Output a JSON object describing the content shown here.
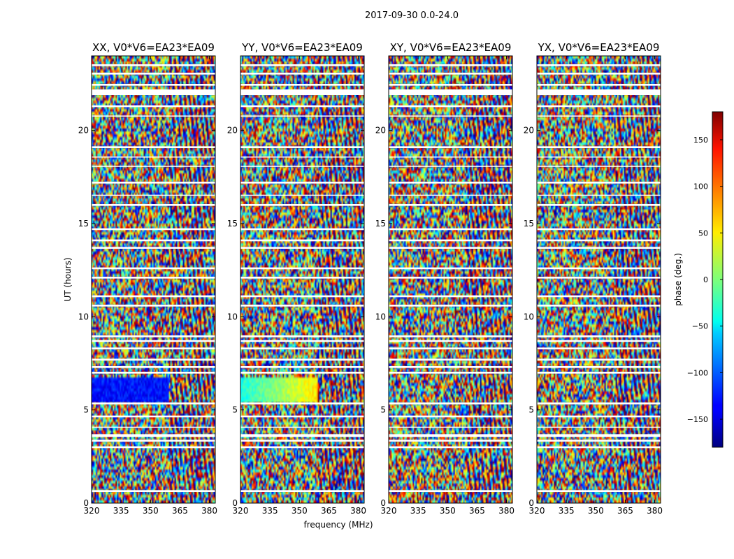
{
  "chart_data": {
    "type": "heatmap",
    "suptitle": "2017-09-30 0.0-24.0",
    "xlabel": "frequency (MHz)",
    "ylabel": "UT (hours)",
    "xlim": [
      320,
      383
    ],
    "ylim": [
      0,
      24
    ],
    "xticks": [
      320,
      335,
      350,
      365,
      380
    ],
    "yticks": [
      0,
      5,
      10,
      15,
      20
    ],
    "panels": [
      {
        "title": "XX, V0*V6=EA23*EA09"
      },
      {
        "title": "YY, V0*V6=EA23*EA09"
      },
      {
        "title": "XY, V0*V6=EA23*EA09"
      },
      {
        "title": "YX, V0*V6=EA23*EA09"
      }
    ],
    "colorbar": {
      "label": "phase (deg.)",
      "range": [
        -180,
        180
      ],
      "ticks": [
        150,
        100,
        50,
        0,
        -50,
        -100,
        -150
      ],
      "tick_labels": [
        "150",
        "100",
        "50",
        "0",
        "−50",
        "−100",
        "−150"
      ],
      "colormap": "jet"
    },
    "blank_time_ranges_hours": [
      [
        0.6,
        0.7
      ],
      [
        2.95,
        3.05
      ],
      [
        3.3,
        3.4
      ],
      [
        3.55,
        3.7
      ],
      [
        4.05,
        4.1
      ],
      [
        4.6,
        4.7
      ],
      [
        5.3,
        5.4
      ],
      [
        6.95,
        7.05
      ],
      [
        7.25,
        7.35
      ],
      [
        7.65,
        7.75
      ],
      [
        8.25,
        8.35
      ],
      [
        8.65,
        8.75
      ],
      [
        8.9,
        9.0
      ],
      [
        10.55,
        10.65
      ],
      [
        11.05,
        11.15
      ],
      [
        12.05,
        12.15
      ],
      [
        12.55,
        12.65
      ],
      [
        13.65,
        13.75
      ],
      [
        14.05,
        14.15
      ],
      [
        14.65,
        14.75
      ],
      [
        15.95,
        16.05
      ],
      [
        16.5,
        16.55
      ],
      [
        17.15,
        17.25
      ],
      [
        18.05,
        18.1
      ],
      [
        18.55,
        18.6
      ],
      [
        19.05,
        19.15
      ],
      [
        20.75,
        20.8
      ],
      [
        21.25,
        21.35
      ],
      [
        21.9,
        22.2
      ],
      [
        22.4,
        22.5
      ],
      [
        23.0,
        23.1
      ],
      [
        23.45,
        23.55
      ]
    ]
  }
}
